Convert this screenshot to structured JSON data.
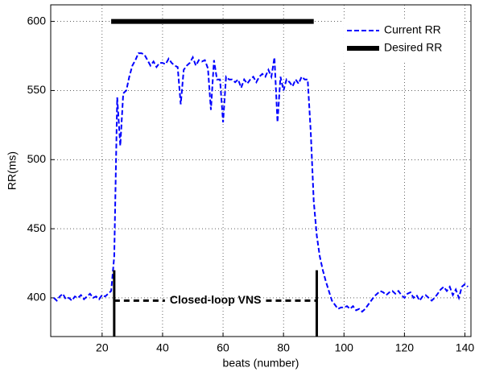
{
  "chart_data": {
    "type": "line",
    "xlabel": "beats (number)",
    "ylabel": "RR(ms)",
    "xlim": [
      3,
      142
    ],
    "ylim": [
      372,
      612
    ],
    "xticks": [
      20,
      40,
      60,
      80,
      100,
      120,
      140
    ],
    "yticks": [
      400,
      450,
      500,
      550,
      600
    ],
    "grid": true,
    "legend": "upper right",
    "series": [
      {
        "name": "Current RR",
        "color": "#0000ff",
        "line_style": "dashed",
        "linewidth": 2,
        "x": [
          4,
          5,
          6,
          7,
          8,
          9,
          10,
          11,
          12,
          13,
          14,
          15,
          16,
          17,
          18,
          19,
          20,
          21,
          22,
          23,
          24,
          25,
          26,
          27,
          28,
          29,
          30,
          31,
          32,
          33,
          34,
          35,
          36,
          37,
          38,
          39,
          40,
          41,
          42,
          43,
          44,
          45,
          46,
          47,
          48,
          49,
          50,
          51,
          52,
          53,
          54,
          55,
          56,
          57,
          58,
          59,
          60,
          61,
          62,
          63,
          64,
          65,
          66,
          67,
          68,
          69,
          70,
          71,
          72,
          73,
          74,
          75,
          76,
          77,
          78,
          79,
          80,
          81,
          82,
          83,
          84,
          85,
          86,
          87,
          88,
          89,
          90,
          91,
          92,
          93,
          94,
          95,
          96,
          97,
          98,
          99,
          100,
          101,
          102,
          103,
          104,
          105,
          106,
          107,
          108,
          109,
          110,
          111,
          112,
          113,
          114,
          115,
          116,
          117,
          118,
          119,
          120,
          121,
          122,
          123,
          124,
          125,
          126,
          127,
          128,
          129,
          130,
          131,
          132,
          133,
          134,
          135,
          136,
          137,
          138,
          139,
          140,
          141
        ],
        "values": [
          400,
          398,
          401,
          403,
          399,
          400,
          398,
          401,
          400,
          402,
          399,
          401,
          403,
          400,
          401,
          399,
          402,
          401,
          403,
          405,
          430,
          545,
          510,
          548,
          550,
          560,
          568,
          572,
          577,
          577,
          576,
          572,
          568,
          571,
          567,
          570,
          570,
          569,
          573,
          570,
          568,
          567,
          540,
          565,
          568,
          570,
          574,
          568,
          572,
          571,
          572,
          566,
          536,
          572,
          558,
          558,
          527,
          560,
          558,
          558,
          556,
          558,
          552,
          558,
          555,
          558,
          560,
          556,
          560,
          562,
          560,
          565,
          560,
          574,
          527,
          560,
          550,
          558,
          556,
          553,
          558,
          555,
          560,
          558,
          558,
          520,
          470,
          445,
          430,
          420,
          412,
          405,
          398,
          395,
          392,
          393,
          393,
          394,
          392,
          394,
          391,
          392,
          390,
          392,
          395,
          398,
          401,
          403,
          405,
          404,
          402,
          404,
          405,
          403,
          405,
          402,
          400,
          403,
          404,
          400,
          402,
          398,
          401,
          402,
          400,
          398,
          400,
          403,
          406,
          408,
          405,
          408,
          402,
          406,
          400,
          408,
          410,
          408
        ]
      },
      {
        "name": "Desired RR",
        "color": "#000000",
        "line_style": "solid",
        "linewidth": 6,
        "x": [
          23,
          90
        ],
        "values": [
          600,
          600
        ]
      }
    ],
    "annotation": {
      "text": "Closed-loop VNS",
      "x": [
        24,
        91
      ],
      "y": 398,
      "y_range": [
        372,
        420
      ]
    }
  }
}
